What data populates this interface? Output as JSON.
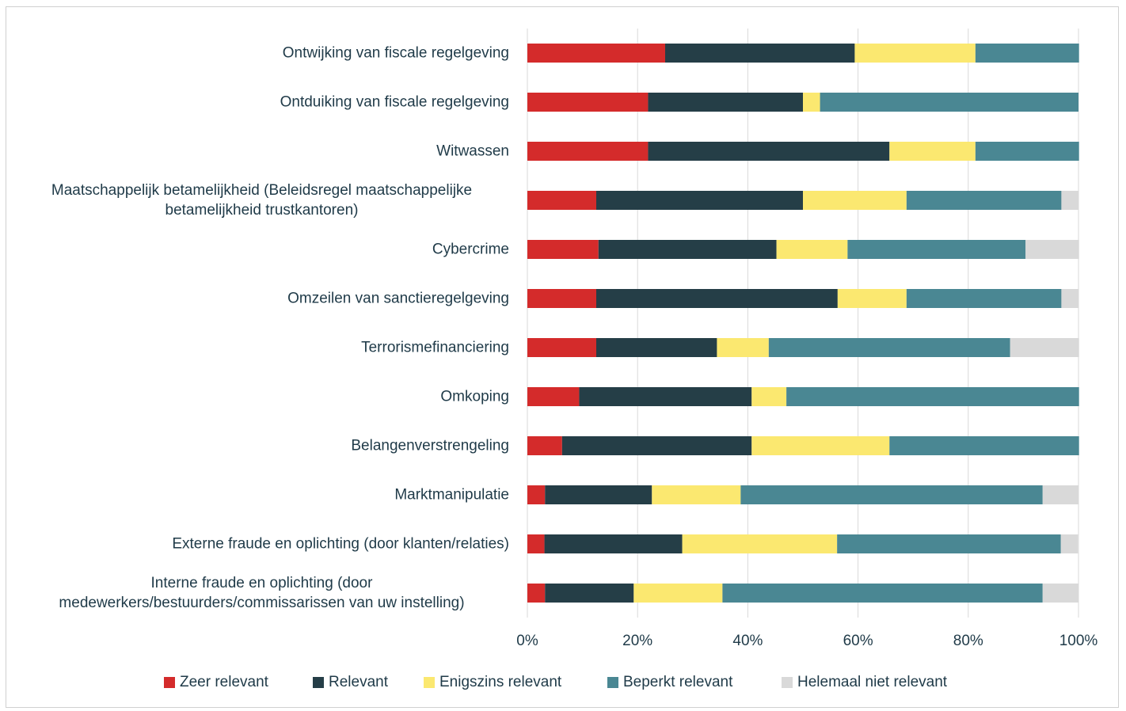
{
  "chart_data": {
    "type": "stacked-bar-horizontal",
    "categories": [
      "Ontwijking van fiscale regelgeving",
      "Ontduiking van fiscale regelgeving",
      "Witwassen",
      "Maatschappelijk betamelijkheid (Beleidsregel maatschappelijke betamelijkheid trustkantoren)",
      "Cybercrime",
      "Omzeilen van sanctieregelgeving",
      "Terrorismefinanciering",
      "Omkoping",
      "Belangenverstrengeling",
      "Marktmanipulatie",
      "Externe fraude en oplichting (door klanten/relaties)",
      "Interne fraude en oplichting (door medewerkers/bestuurders/commissarissen van uw instelling)"
    ],
    "series": [
      {
        "name": "Zeer relevant",
        "color": "#d42b2b",
        "values": [
          25,
          21.9,
          21.9,
          12.5,
          12.9,
          12.5,
          12.5,
          9.4,
          6.3,
          3.2,
          3.1,
          3.2
        ]
      },
      {
        "name": "Relevant",
        "color": "#253e47",
        "values": [
          34.4,
          28.1,
          43.8,
          37.5,
          32.3,
          43.8,
          21.9,
          31.3,
          34.4,
          19.4,
          25,
          16.1
        ]
      },
      {
        "name": "Enigszins relevant",
        "color": "#fbe870",
        "values": [
          21.9,
          3.1,
          15.6,
          18.8,
          12.9,
          12.5,
          9.4,
          6.3,
          25,
          16.1,
          28.1,
          16.1
        ]
      },
      {
        "name": "Beperkt relevant",
        "color": "#4a8793",
        "values": [
          18.8,
          46.9,
          18.8,
          28.1,
          32.3,
          28.1,
          43.8,
          53.1,
          34.4,
          54.8,
          40.6,
          58.1
        ]
      },
      {
        "name": "Helemaal niet relevant",
        "color": "#d9d9d9",
        "values": [
          0,
          0,
          0,
          3.1,
          9.7,
          3.1,
          12.5,
          0,
          0,
          6.5,
          3.1,
          6.5
        ]
      }
    ],
    "xlim": [
      0,
      100
    ],
    "xticks": [
      {
        "value": 0,
        "label": "0%"
      },
      {
        "value": 20,
        "label": "20%"
      },
      {
        "value": 40,
        "label": "40%"
      },
      {
        "value": 60,
        "label": "60%"
      },
      {
        "value": 80,
        "label": "80%"
      },
      {
        "value": 100,
        "label": "100%"
      }
    ],
    "grid": true,
    "legend": "bottom"
  }
}
